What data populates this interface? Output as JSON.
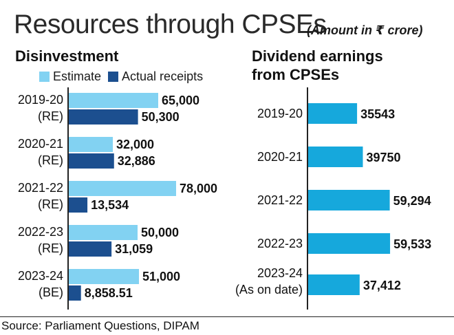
{
  "title": "Resources through CPSEs",
  "subtitle": "(Amount in ₹ crore)",
  "source": "Source: Parliament Questions, DIPAM",
  "colors": {
    "estimate": "#82d2f2",
    "actual": "#1c4f8f",
    "dividend": "#16a8dc",
    "axis": "#222222"
  },
  "chart_data": [
    {
      "type": "bar",
      "orientation": "horizontal",
      "title": "Disinvestment",
      "legend": [
        "Estimate",
        "Actual receipts"
      ],
      "categories": [
        [
          "2019-20",
          "(RE)"
        ],
        [
          "2020-21",
          "(RE)"
        ],
        [
          "2021-22",
          "(RE)"
        ],
        [
          "2022-23",
          "(RE)"
        ],
        [
          "2023-24",
          "(BE)"
        ]
      ],
      "series": [
        {
          "name": "Estimate",
          "values": [
            65000,
            32000,
            78000,
            50000,
            51000
          ],
          "labels": [
            "65,000",
            "32,000",
            "78,000",
            "50,000",
            "51,000"
          ]
        },
        {
          "name": "Actual receipts",
          "values": [
            50300,
            32886,
            13534,
            31059,
            8858.51
          ],
          "labels": [
            "50,300",
            "32,886",
            "13,534",
            "31,059",
            "8,858.51"
          ]
        }
      ],
      "xlim": [
        0,
        90000
      ]
    },
    {
      "type": "bar",
      "orientation": "horizontal",
      "title": "Dividend earnings from CPSEs",
      "title_lines": [
        "Dividend earnings",
        "from CPSEs"
      ],
      "categories": [
        [
          "2019-20"
        ],
        [
          "2020-21"
        ],
        [
          "2021-22"
        ],
        [
          "2022-23"
        ],
        [
          "2023-24",
          "(As on date)"
        ]
      ],
      "series": [
        {
          "name": "Dividend",
          "values": [
            35543,
            39750,
            59294,
            59533,
            37412
          ],
          "labels": [
            "35543",
            "39750",
            "59,294",
            "59,533",
            "37,412"
          ]
        }
      ],
      "xlim": [
        0,
        70000
      ]
    }
  ]
}
